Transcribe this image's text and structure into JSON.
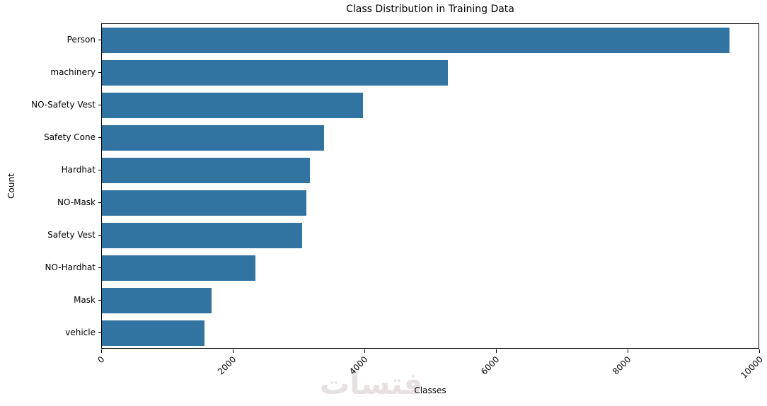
{
  "figure": {
    "watermark": "فتسات"
  },
  "chart_data": {
    "type": "bar",
    "orientation": "horizontal",
    "title": "Class Distribution in Training Data",
    "xlabel": "Classes",
    "ylabel": "Count",
    "categories": [
      "Person",
      "machinery",
      "NO-Safety Vest",
      "Safety Cone",
      "Hardhat",
      "NO-Mask",
      "Safety Vest",
      "NO-Hardhat",
      "Mask",
      "vehicle"
    ],
    "values": [
      9540,
      5260,
      3970,
      3380,
      3160,
      3110,
      3040,
      2330,
      1670,
      1560
    ],
    "xlim": [
      0,
      10000
    ],
    "xticks": [
      0,
      2000,
      4000,
      6000,
      8000,
      10000
    ],
    "xtick_rotation": 45,
    "bar_color": "#3274a1",
    "grid": false,
    "legend": "none"
  }
}
